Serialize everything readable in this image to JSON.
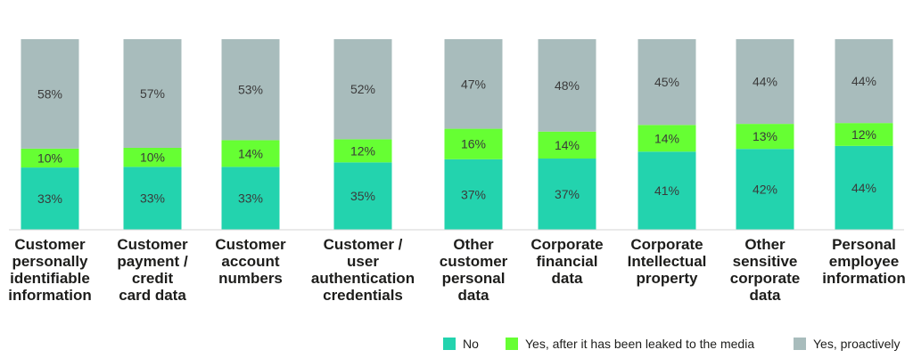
{
  "colors": {
    "no": "#23d3ae",
    "leaked": "#66ff33",
    "proactive": "#a8bcbc",
    "baseline": "#d6d6d6"
  },
  "chart_data": {
    "type": "bar",
    "stacked": true,
    "categories": [
      "Customer personally identifiable information",
      "Customer payment / credit card data",
      "Customer account numbers",
      "Customer / user authentication credentials",
      "Other customer personal data",
      "Corporate financial data",
      "Corporate Intellectual property",
      "Other sensitive corporate data",
      "Personal employee information"
    ],
    "category_lines": [
      [
        "Customer",
        "personally",
        "identifiable",
        "information"
      ],
      [
        "Customer",
        "payment /",
        "credit",
        "card data"
      ],
      [
        "Customer",
        "account",
        "numbers"
      ],
      [
        "Customer /",
        "user",
        "authentication",
        "credentials"
      ],
      [
        "Other",
        "customer",
        "personal",
        "data"
      ],
      [
        "Corporate",
        "financial",
        "data"
      ],
      [
        "Corporate",
        "Intellectual",
        "property"
      ],
      [
        "Other",
        "sensitive",
        "corporate",
        "data"
      ],
      [
        "Personal",
        "employee",
        "information"
      ]
    ],
    "series": [
      {
        "name": "No",
        "key": "no",
        "values": [
          33,
          33,
          33,
          35,
          37,
          37,
          41,
          42,
          44
        ]
      },
      {
        "name": "Yes, after it has been leaked to the media",
        "key": "leaked",
        "values": [
          10,
          10,
          14,
          12,
          16,
          14,
          14,
          13,
          12
        ]
      },
      {
        "name": "Yes, proactively",
        "key": "proactive",
        "values": [
          58,
          57,
          53,
          52,
          47,
          48,
          45,
          44,
          44
        ]
      }
    ],
    "value_suffix": "%",
    "legend_position": "bottom-right",
    "grid": false
  },
  "legend": {
    "no": "No",
    "leaked": "Yes, after it has been leaked to the media",
    "proactive": "Yes, proactively"
  }
}
